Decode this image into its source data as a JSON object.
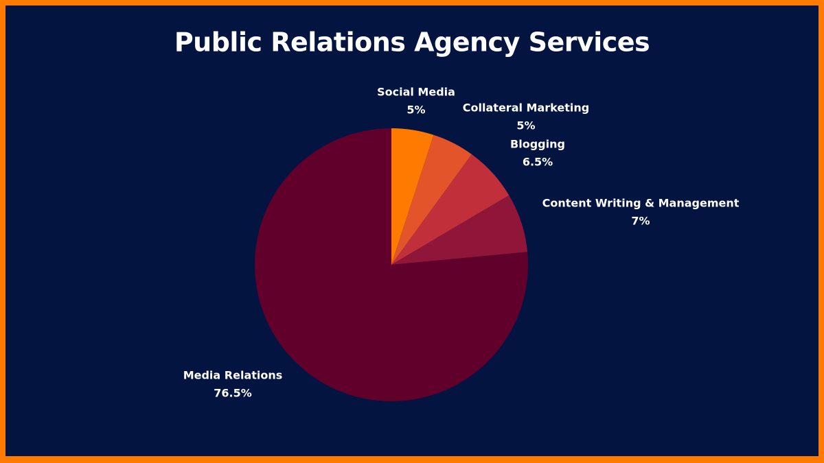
{
  "chart_data": {
    "type": "pie",
    "title": "Public Relations Agency Services",
    "categories": [
      "Social Media",
      "Collateral Marketing",
      "Blogging",
      "Content Writing & Management",
      "Media Relations"
    ],
    "values": [
      5,
      5,
      6.5,
      7,
      76.5
    ],
    "value_labels": [
      "5%",
      "5%",
      "6.5%",
      "7%",
      "76.5%"
    ],
    "colors": [
      "#ff7a00",
      "#e4542a",
      "#c1303a",
      "#8f1539",
      "#62002c"
    ]
  }
}
